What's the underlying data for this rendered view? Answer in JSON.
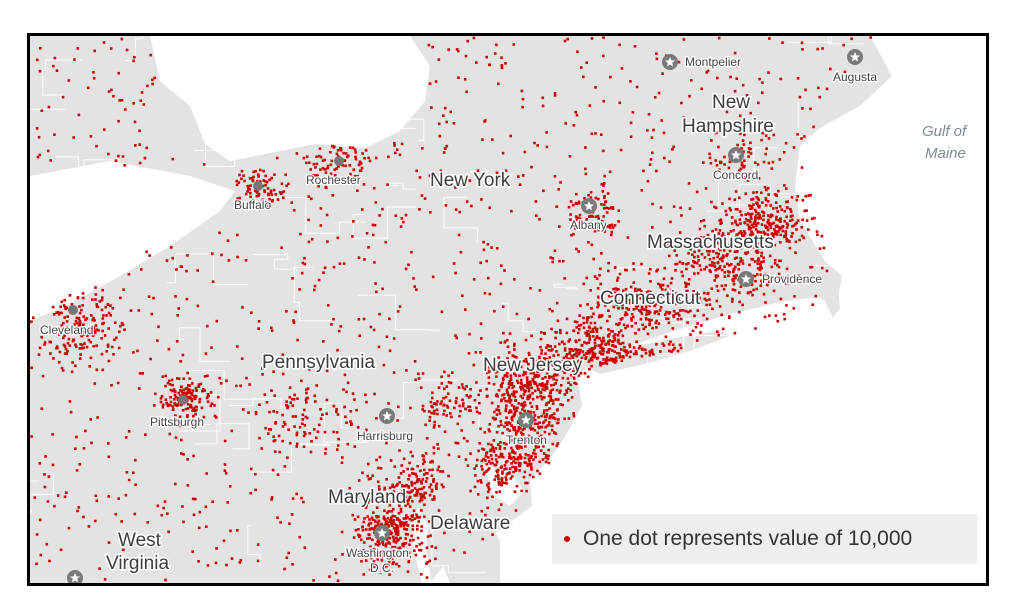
{
  "legend": {
    "text": "One dot represents value of 10,000"
  },
  "colors": {
    "dot": "#cc0000",
    "land": "#e3e3e3",
    "water": "#ffffff",
    "boundary": "#ffffff",
    "capital_marker": "#7a7a7a"
  },
  "states": {
    "new_york": "New York",
    "pennsylvania": "Pennsylvania",
    "new_jersey": "New Jersey",
    "connecticut": "Connecticut",
    "massachusetts": "Massachusetts",
    "new_hampshire_1": "New",
    "new_hampshire_2": "Hampshire",
    "maryland": "Maryland",
    "delaware": "Delaware",
    "west_virginia_1": "West",
    "west_virginia_2": "Virginia"
  },
  "cities": {
    "montpelier": "Montpelier",
    "augusta": "Augusta",
    "concord": "Concord",
    "albany": "Albany",
    "rochester": "Rochester",
    "buffalo": "Buffalo",
    "cleveland": "Cleveland",
    "pittsburgh": "Pittsburgh",
    "harrisburg": "Harrisburg",
    "trenton": "Trenton",
    "providence": "Providence",
    "washington_1": "Washington,",
    "washington_2": "D.C."
  },
  "water": {
    "gulf_1": "Gulf of",
    "gulf_2": "Maine"
  },
  "city_markers": {
    "capitals": [
      "montpelier",
      "augusta",
      "concord",
      "albany",
      "harrisburg",
      "trenton",
      "providence",
      "washington",
      "charleston"
    ],
    "cities": [
      "rochester",
      "buffalo",
      "cleveland",
      "pittsburgh"
    ]
  }
}
